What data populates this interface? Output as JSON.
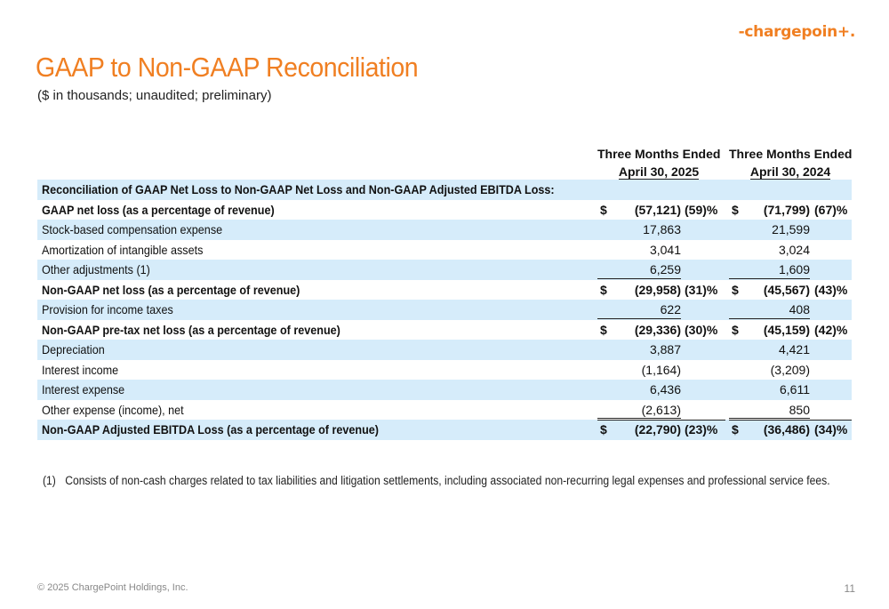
{
  "logo": "-chargepoin+.",
  "title": "GAAP to Non-GAAP Reconciliation",
  "subtitle": "($ in thousands; unaudited; preliminary)",
  "columns": [
    {
      "line1": "Three Months Ended",
      "line2": "April 30, 2025"
    },
    {
      "line1": "Three Months Ended",
      "line2": "April 30, 2024"
    }
  ],
  "rows": [
    {
      "label": "Reconciliation of GAAP Net Loss to Non-GAAP Net Loss and Non-GAAP Adjusted EBITDA Loss:",
      "bold": true,
      "shade": true
    },
    {
      "label": "GAAP net loss (as a percentage of revenue)",
      "bold": true,
      "d1": "$",
      "v1": "(57,121)",
      "p1": "(59)%",
      "d2": "$",
      "v2": "(71,799)",
      "p2": "(67)%"
    },
    {
      "label": "Stock-based compensation expense",
      "shade": true,
      "v1": "17,863",
      "v2": "21,599"
    },
    {
      "label": "Amortization of intangible assets",
      "v1": "3,041",
      "v2": "3,024"
    },
    {
      "label": "Other adjustments (1)",
      "shade": true,
      "v1": "6,259",
      "v2": "1,609",
      "underline": true
    },
    {
      "label": "Non-GAAP net loss (as a percentage of revenue)",
      "bold": true,
      "d1": "$",
      "v1": "(29,958)",
      "p1": "(31)%",
      "d2": "$",
      "v2": "(45,567)",
      "p2": "(43)%"
    },
    {
      "label": "Provision for income taxes",
      "shade": true,
      "v1": "622",
      "v2": "408",
      "underline": true
    },
    {
      "label": "Non-GAAP pre-tax net loss (as a percentage of revenue)",
      "bold": true,
      "d1": "$",
      "v1": "(29,336)",
      "p1": "(30)%",
      "d2": "$",
      "v2": "(45,159)",
      "p2": "(42)%"
    },
    {
      "label": "Depreciation",
      "shade": true,
      "v1": "3,887",
      "v2": "4,421"
    },
    {
      "label": "Interest income",
      "v1": "(1,164)",
      "v2": "(3,209)"
    },
    {
      "label": "Interest expense",
      "shade": true,
      "v1": "6,436",
      "v2": "6,611"
    },
    {
      "label": "Other expense (income), net",
      "v1": "(2,613)",
      "v2": "850",
      "underline": true
    },
    {
      "label": "Non-GAAP Adjusted EBITDA Loss (as a percentage of revenue)",
      "bold": true,
      "shade": true,
      "d1": "$",
      "v1": "(22,790)",
      "p1": "(23)%",
      "d2": "$",
      "v2": "(36,486)",
      "p2": "(34)%"
    }
  ],
  "footnote": {
    "num": "(1)",
    "text": "Consists of non-cash charges related to tax liabilities and litigation settlements, including associated non-recurring legal expenses and professional service fees."
  },
  "copyright": "© 2025 ChargePoint Holdings, Inc.",
  "page_number": "11",
  "colors": {
    "accent": "#f07f22",
    "row_shade": "#d6ecfa"
  }
}
